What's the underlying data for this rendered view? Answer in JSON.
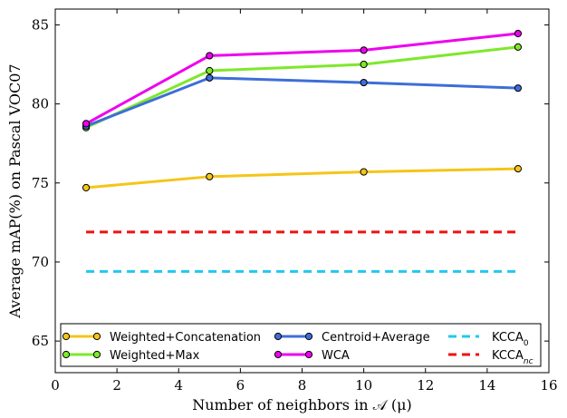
{
  "chart_data": {
    "type": "line",
    "xlabel": "Number of neighbors in 𝒜 (μ)",
    "ylabel": "Average mAP(%) on Pascal VOC07",
    "xlim": [
      0,
      16
    ],
    "ylim": [
      63,
      86
    ],
    "x_ticks": [
      "0",
      "2",
      "4",
      "6",
      "8",
      "10",
      "12",
      "14",
      "16"
    ],
    "y_ticks": [
      "65",
      "70",
      "75",
      "80",
      "85"
    ],
    "x_tick_values": [
      0,
      2,
      4,
      6,
      8,
      10,
      12,
      14,
      16
    ],
    "y_tick_values": [
      65,
      70,
      75,
      80,
      85
    ],
    "grid": false,
    "legend_location": "lower center",
    "series": [
      {
        "name": "Weighted+Concatenation",
        "color": "#f5c518",
        "style": "solid",
        "markers": true,
        "x": [
          1,
          5,
          10,
          15
        ],
        "y": [
          74.7,
          75.4,
          75.7,
          75.9
        ]
      },
      {
        "name": "Weighted+Max",
        "color": "#7ee82b",
        "style": "solid",
        "markers": true,
        "x": [
          1,
          5,
          10,
          15
        ],
        "y": [
          78.5,
          82.1,
          82.5,
          83.6
        ]
      },
      {
        "name": "Centroid+Average",
        "color": "#3d6ed9",
        "style": "solid",
        "markers": true,
        "x": [
          1,
          5,
          10,
          15
        ],
        "y": [
          78.6,
          81.65,
          81.35,
          81.0
        ]
      },
      {
        "name": "WCA",
        "color": "#ee00ee",
        "style": "solid",
        "markers": true,
        "x": [
          1,
          5,
          10,
          15
        ],
        "y": [
          78.75,
          83.05,
          83.4,
          84.45
        ]
      },
      {
        "name": "KCCA",
        "subscript": "0",
        "color": "#20c8f0",
        "style": "dashed",
        "markers": false,
        "x": [
          1,
          15
        ],
        "y": [
          69.4,
          69.4
        ]
      },
      {
        "name": "KCCA",
        "subscript": "nc",
        "color": "#ee1111",
        "style": "dashed",
        "markers": false,
        "x": [
          1,
          15
        ],
        "y": [
          71.9,
          71.9
        ]
      }
    ]
  }
}
